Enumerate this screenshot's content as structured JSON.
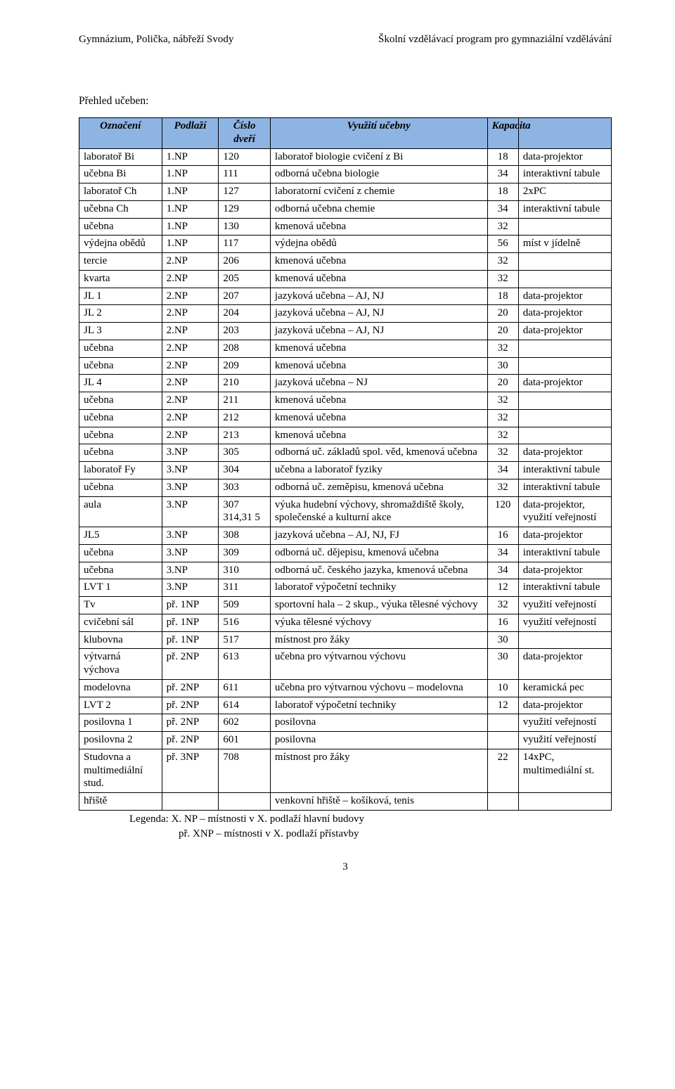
{
  "header_left": "Gymnázium, Polička, nábřeží Svody",
  "header_right": "Školní vzdělávací program pro gymnaziální vzdělávání",
  "section_title": "Přehled učeben:",
  "columns": [
    "Označení",
    "Podlaží",
    "Číslo dveří",
    "Využití učebny",
    "Kapacita",
    ""
  ],
  "rows": [
    {
      "label": "laboratoř Bi",
      "floor": "1.NP",
      "door": "120",
      "use": "laboratoř biologie cvičení z Bi",
      "cap": "18",
      "note": "data-projektor"
    },
    {
      "label": "učebna Bi",
      "floor": "1.NP",
      "door": "111",
      "use": "odborná učebna biologie",
      "cap": "34",
      "note": "interaktivní tabule"
    },
    {
      "label": "laboratoř Ch",
      "floor": "1.NP",
      "door": "127",
      "use": "laboratorní cvičení z chemie",
      "cap": "18",
      "note": "2xPC"
    },
    {
      "label": "učebna Ch",
      "floor": "1.NP",
      "door": "129",
      "use": "odborná učebna chemie",
      "cap": "34",
      "note": "interaktivní tabule"
    },
    {
      "label": "učebna",
      "floor": "1.NP",
      "door": "130",
      "use": "kmenová učebna",
      "cap": "32",
      "note": ""
    },
    {
      "label": "výdejna obědů",
      "floor": "1.NP",
      "door": "117",
      "use": "výdejna obědů",
      "cap": "56",
      "note": "míst v jídelně"
    },
    {
      "label": "tercie",
      "floor": "2.NP",
      "door": "206",
      "use": "kmenová učebna",
      "cap": "32",
      "note": ""
    },
    {
      "label": "kvarta",
      "floor": "2.NP",
      "door": "205",
      "use": "kmenová učebna",
      "cap": "32",
      "note": ""
    },
    {
      "label": "JL 1",
      "floor": "2.NP",
      "door": "207",
      "use": "jazyková učebna – AJ, NJ",
      "cap": "18",
      "note": "data-projektor"
    },
    {
      "label": "JL 2",
      "floor": "2.NP",
      "door": "204",
      "use": "jazyková učebna – AJ, NJ",
      "cap": "20",
      "note": "data-projektor"
    },
    {
      "label": "JL 3",
      "floor": "2.NP",
      "door": "203",
      "use": "jazyková učebna – AJ, NJ",
      "cap": "20",
      "note": "data-projektor"
    },
    {
      "label": "učebna",
      "floor": "2.NP",
      "door": "208",
      "use": "kmenová učebna",
      "cap": "32",
      "note": ""
    },
    {
      "label": "učebna",
      "floor": "2.NP",
      "door": "209",
      "use": "kmenová učebna",
      "cap": "30",
      "note": ""
    },
    {
      "label": "JL 4",
      "floor": "2.NP",
      "door": "210",
      "use": "jazyková učebna – NJ",
      "cap": "20",
      "note": "data-projektor"
    },
    {
      "label": "učebna",
      "floor": "2.NP",
      "door": "211",
      "use": "kmenová učebna",
      "cap": "32",
      "note": ""
    },
    {
      "label": "učebna",
      "floor": "2.NP",
      "door": "212",
      "use": "kmenová učebna",
      "cap": "32",
      "note": ""
    },
    {
      "label": "učebna",
      "floor": "2.NP",
      "door": "213",
      "use": "kmenová učebna",
      "cap": "32",
      "note": ""
    },
    {
      "label": "učebna",
      "floor": "3.NP",
      "door": "305",
      "use": "odborná uč. základů spol. věd, kmenová učebna",
      "cap": "32",
      "note": "data-projektor"
    },
    {
      "label": "laboratoř Fy",
      "floor": "3.NP",
      "door": "304",
      "use": "učebna a laboratoř fyziky",
      "cap": "34",
      "note": "interaktivní tabule"
    },
    {
      "label": "učebna",
      "floor": "3.NP",
      "door": "303",
      "use": "odborná uč. zeměpisu, kmenová učebna",
      "cap": "32",
      "note": "interaktivní tabule"
    },
    {
      "label": "aula",
      "floor": "3.NP",
      "door": "307 314,31 5",
      "use": "výuka hudební výchovy, shromaždiště školy, společenské a kulturní akce",
      "cap": "120",
      "note": "data-projektor, využití veřejností"
    },
    {
      "label": "JL5",
      "floor": "3.NP",
      "door": "308",
      "use": "jazyková učebna – AJ, NJ, FJ",
      "cap": "16",
      "note": "data-projektor"
    },
    {
      "label": "učebna",
      "floor": "3.NP",
      "door": "309",
      "use": "odborná uč. dějepisu, kmenová učebna",
      "cap": "34",
      "note": "interaktivní tabule"
    },
    {
      "label": "učebna",
      "floor": "3.NP",
      "door": "310",
      "use": "odborná uč. českého jazyka, kmenová učebna",
      "cap": "34",
      "note": "data-projektor"
    },
    {
      "label": "LVT 1",
      "floor": "3.NP",
      "door": "311",
      "use": "laboratoř výpočetní techniky",
      "cap": "12",
      "note": "interaktivní tabule"
    },
    {
      "label": "Tv",
      "floor": "př. 1NP",
      "door": "509",
      "use": "sportovní hala – 2 skup., výuka tělesné výchovy",
      "cap": "32",
      "note": "využití veřejností"
    },
    {
      "label": "cvičební sál",
      "floor": "př. 1NP",
      "door": "516",
      "use": "výuka tělesné výchovy",
      "cap": "16",
      "note": "využití veřejností"
    },
    {
      "label": "klubovna",
      "floor": "př. 1NP",
      "door": "517",
      "use": "místnost pro žáky",
      "cap": "30",
      "note": ""
    },
    {
      "label": "výtvarná výchova",
      "floor": "př. 2NP",
      "door": "613",
      "use": "učebna pro výtvarnou výchovu",
      "cap": "30",
      "note": "data-projektor"
    },
    {
      "label": "modelovna",
      "floor": "př. 2NP",
      "door": "611",
      "use": "učebna pro výtvarnou výchovu – modelovna",
      "cap": "10",
      "note": "keramická pec"
    },
    {
      "label": "LVT 2",
      "floor": "př. 2NP",
      "door": "614",
      "use": "laboratoř výpočetní techniky",
      "cap": "12",
      "note": "data-projektor"
    },
    {
      "label": "posilovna 1",
      "floor": "př. 2NP",
      "door": "602",
      "use": "posilovna",
      "cap": "",
      "note": "využití veřejností"
    },
    {
      "label": "posilovna 2",
      "floor": "př. 2NP",
      "door": "601",
      "use": "posilovna",
      "cap": "",
      "note": "využití veřejností"
    },
    {
      "label": "Studovna a multimediální stud.",
      "floor": "př. 3NP",
      "door": "708",
      "use": "místnost pro žáky",
      "cap": "22",
      "note": "14xPC, multimediální st."
    },
    {
      "label": "hřiště",
      "floor": "",
      "door": "",
      "use": "venkovní hřiště – košíková, tenis",
      "cap": "",
      "note": ""
    }
  ],
  "legend_label": "Legenda:",
  "legend_line1": "X. NP    – místnosti v X. podlaží hlavní budovy",
  "legend_line2": "př. XNP – místnosti v X. podlaží  přístavby",
  "page_number": "3",
  "colors": {
    "header_bg": "#8eb4e3",
    "border": "#000000",
    "text": "#000000",
    "page_bg": "#ffffff"
  }
}
